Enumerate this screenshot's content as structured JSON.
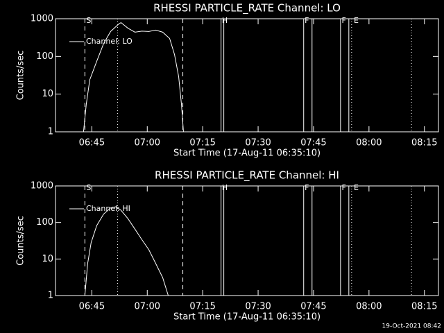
{
  "chart_data": [
    {
      "type": "line",
      "title": "RHESSI PARTICLE_RATE Channel: LO",
      "x_label": "Start Time (17-Aug-11 06:35:10)",
      "y_label": "Counts/sec",
      "xlim": [
        395.17,
        498.8
      ],
      "xticks": [
        {
          "value": 405,
          "label": "06:45"
        },
        {
          "value": 420,
          "label": "07:00"
        },
        {
          "value": 435,
          "label": "07:15"
        },
        {
          "value": 450,
          "label": "07:30"
        },
        {
          "value": 465,
          "label": "07:45"
        },
        {
          "value": 480,
          "label": "08:00"
        },
        {
          "value": 495,
          "label": "08:15"
        }
      ],
      "ylim": [
        1,
        1000
      ],
      "yticks": [
        1,
        10,
        100,
        1000
      ],
      "log_y": true,
      "series": [
        {
          "name": "Channel: LO",
          "color": "#ffffff",
          "x": [
            402.75,
            403.5,
            404.44,
            406.32,
            408.2,
            410.08,
            412.33,
            412.9,
            414.78,
            416.66,
            418.54,
            420.42,
            422.3,
            424.17,
            426.05,
            427.37,
            428.5,
            429.25,
            429.8
          ],
          "values": [
            1,
            5.4,
            24,
            74,
            220,
            460,
            730,
            790,
            560,
            440,
            470,
            460,
            500,
            440,
            300,
            113,
            29,
            5.4,
            1
          ]
        }
      ],
      "vlines": [
        {
          "x": 403.12,
          "style": "dashed"
        },
        {
          "x": 429.63,
          "style": "dashed"
        },
        {
          "x": 411.96,
          "style": "dotted"
        },
        {
          "x": 475.3,
          "style": "dotted"
        },
        {
          "x": 491.5,
          "style": "dotted"
        },
        {
          "x": 439.97,
          "style": "solid"
        },
        {
          "x": 440.72,
          "style": "solid"
        },
        {
          "x": 462.33,
          "style": "solid"
        },
        {
          "x": 464.59,
          "style": "solid"
        },
        {
          "x": 472.3,
          "style": "solid"
        },
        {
          "x": 474.55,
          "style": "solid"
        }
      ],
      "flags": [
        {
          "label": "S",
          "x": 403.5
        },
        {
          "label": "H",
          "x": 440.2
        },
        {
          "label": "F",
          "x": 462.6
        },
        {
          "label": "F",
          "x": 472.6
        },
        {
          "label": "E",
          "x": 475.9
        }
      ]
    },
    {
      "type": "line",
      "title": "RHESSI PARTICLE_RATE Channel: HI",
      "x_label": "Start Time (17-Aug-11 06:35:10)",
      "y_label": "Counts/sec",
      "xlim": [
        395.17,
        498.8
      ],
      "xticks": [
        {
          "value": 405,
          "label": "06:45"
        },
        {
          "value": 420,
          "label": "07:00"
        },
        {
          "value": 435,
          "label": "07:15"
        },
        {
          "value": 450,
          "label": "07:30"
        },
        {
          "value": 465,
          "label": "07:45"
        },
        {
          "value": 480,
          "label": "08:00"
        },
        {
          "value": 495,
          "label": "08:15"
        }
      ],
      "ylim": [
        1,
        1000
      ],
      "yticks": [
        1,
        10,
        100,
        1000
      ],
      "log_y": true,
      "series": [
        {
          "name": "Channel: HI",
          "color": "#ffffff",
          "x": [
            403.12,
            403.87,
            404.81,
            406.32,
            408.2,
            410.08,
            411.58,
            412.9,
            414.78,
            416.66,
            418.54,
            420.42,
            422.3,
            424.17,
            425.68
          ],
          "values": [
            1,
            7.5,
            28,
            82,
            170,
            250,
            270,
            215,
            127,
            66,
            34,
            18,
            7.5,
            3.1,
            1
          ]
        }
      ],
      "vlines": [
        {
          "x": 403.12,
          "style": "dashed"
        },
        {
          "x": 429.63,
          "style": "dashed"
        },
        {
          "x": 411.96,
          "style": "dotted"
        },
        {
          "x": 475.3,
          "style": "dotted"
        },
        {
          "x": 491.5,
          "style": "dotted"
        },
        {
          "x": 439.97,
          "style": "solid"
        },
        {
          "x": 440.72,
          "style": "solid"
        },
        {
          "x": 462.33,
          "style": "solid"
        },
        {
          "x": 464.59,
          "style": "solid"
        },
        {
          "x": 472.3,
          "style": "solid"
        },
        {
          "x": 474.55,
          "style": "solid"
        }
      ],
      "flags": [
        {
          "label": "S",
          "x": 403.5
        },
        {
          "label": "H",
          "x": 440.2
        },
        {
          "label": "F",
          "x": 462.6
        },
        {
          "label": "F",
          "x": 472.6
        },
        {
          "label": "E",
          "x": 475.9
        }
      ]
    }
  ],
  "footer": "19-Oct-2021 08:42"
}
